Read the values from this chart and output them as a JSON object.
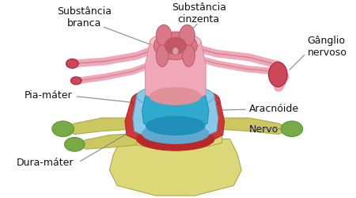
{
  "background_color": "#ffffff",
  "figsize": [
    4.5,
    2.51
  ],
  "dpi": 100,
  "font_size": 9,
  "colors": {
    "vertebra_yellow": "#dcd878",
    "vertebra_yellow2": "#ccc860",
    "vertebra_green_tip": "#7aaa48",
    "dura_red": "#cc3838",
    "dura_red2": "#b82828",
    "arachnoid_blue": "#88c8e8",
    "arachnoid_blue2": "#60a8d0",
    "pia_cyan": "#30aacc",
    "pia_cyan2": "#2090bb",
    "cord_pink": "#f0a8b8",
    "cord_pink2": "#e09098",
    "gray_matter_pink": "#d87888",
    "gray_matter_dark": "#c05868",
    "nerve_pink": "#f0a8b8",
    "nerve_outline": "#d08090",
    "ganglion_red": "#cc4858",
    "nerve_green": "#6aaa48",
    "outline": "#666666",
    "label_color": "#111111",
    "arrow_color": "#888888"
  },
  "labels": {
    "substancia_branca": "Substância\nbranca",
    "substancia_cinzenta": "Substância\ncinzenta",
    "ganglio_nervoso": "Gânglio\nnervoso",
    "pia_mater": "Pia-máter",
    "aracnoide": "Aracnóide",
    "nervo": "Nervo",
    "dura_mater": "Dura-máter"
  }
}
